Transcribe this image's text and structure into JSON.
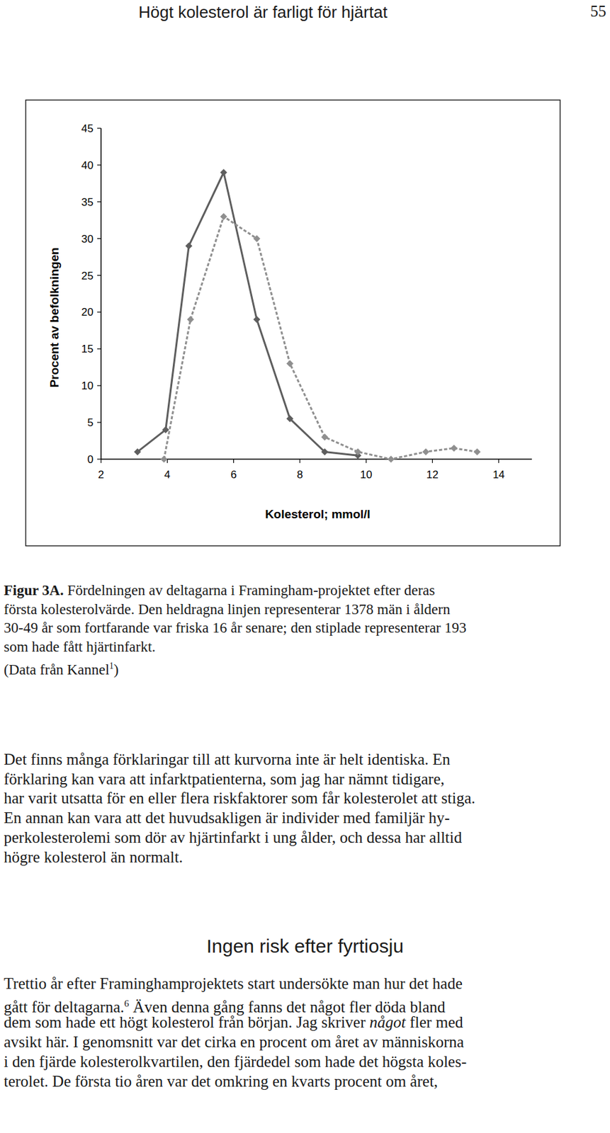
{
  "header": {
    "title": "Högt kolesterol är farligt för hjärtat",
    "page_number": "55"
  },
  "chart_data": {
    "type": "line",
    "x_label": "Kolesterol; mmol/l",
    "y_label": "Procent av befolkningen",
    "xlim": [
      2,
      15
    ],
    "xticks": [
      2,
      4,
      6,
      8,
      10,
      12,
      14
    ],
    "ylim": [
      0,
      45
    ],
    "yticks": [
      0,
      5,
      10,
      15,
      20,
      25,
      30,
      35,
      40,
      45
    ],
    "grid": false,
    "series": [
      {
        "color": "#5e5e5e",
        "line_style": "solid",
        "marker": "diamond",
        "x": [
          3.1,
          3.95,
          4.65,
          5.7,
          6.7,
          7.7,
          8.75,
          9.75
        ],
        "values": [
          1,
          4,
          29,
          39,
          19,
          5.5,
          1,
          0.5
        ]
      },
      {
        "color": "#8f8f8f",
        "line_style": "dashed",
        "marker": "diamond",
        "x": [
          3.9,
          4.7,
          5.7,
          6.7,
          7.7,
          8.75,
          9.75,
          10.75,
          11.8,
          12.65,
          13.35
        ],
        "values": [
          0,
          19,
          33,
          30,
          13,
          3,
          1,
          0,
          1,
          1.5,
          1
        ]
      }
    ]
  },
  "caption": {
    "lines": [
      [
        {
          "text": "Figur 3A.",
          "style": "bold"
        },
        " Fördelningen av deltagarna i Framingham-projektet efter deras"
      ],
      [
        "första kolesterolvärde. Den heldragna linjen representerar 1378 män i åldern"
      ],
      [
        "30-49 år som fortfarande var friska 16 år senare; den stiplade representerar 193"
      ],
      [
        "som hade fått hjärtinfarkt."
      ],
      [
        "(Data från Kannel",
        {
          "text": "1",
          "style": "sup"
        },
        ")"
      ]
    ]
  },
  "body": [
    {
      "type": "paragraph",
      "lines": [
        [
          "Det finns många förklaringar till att kurvorna inte är helt identiska. En"
        ],
        [
          "förklaring kan vara att infarktpatienterna, som jag har nämnt tidigare,"
        ],
        [
          "har varit utsatta för en eller flera riskfaktorer som får kolesterolet att stiga."
        ],
        [
          "En annan kan vara att det huvudsakligen är individer med familjär hy-"
        ],
        [
          "perkolesterolemi som dör av hjärtinfarkt i ung ålder, och dessa har alltid"
        ],
        [
          "högre kolesterol än normalt."
        ]
      ]
    },
    {
      "type": "heading",
      "text": "Ingen risk efter fyrtiosju"
    },
    {
      "type": "paragraph",
      "lines": [
        [
          "Trettio år efter Framinghamprojektets start undersökte man hur det hade"
        ],
        [
          "gått för deltagarna.",
          {
            "text": "6",
            "style": "sup"
          },
          " Även denna gång fanns det något fler döda bland"
        ],
        [
          "dem som hade ett högt kolesterol från början. Jag skriver ",
          {
            "text": "något",
            "style": "italic"
          },
          " fler med"
        ],
        [
          "avsikt här. I genomsnitt var det cirka en procent om året av människorna"
        ],
        [
          "i den fjärde kolesterolkvartilen, den fjärdedel som hade det högsta koles-"
        ],
        [
          "terolet. De första tio åren var det omkring en kvarts procent om året,"
        ]
      ]
    }
  ]
}
